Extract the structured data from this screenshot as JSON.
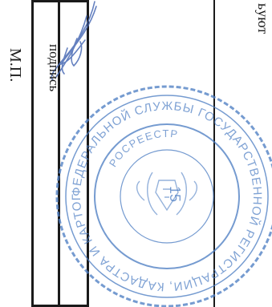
{
  "document": {
    "partial_text": "ьуют",
    "signature_label": "подпись",
    "stamp_place_label": "М.П."
  },
  "seal": {
    "type": "official-round-seal",
    "color": "#4f7fc4",
    "outer_text": "ФЕДЕРАЛЬНОЙ СЛУЖБЫ ГОСУДАРСТВЕННОЙ РЕГИСТРАЦИИ, КАДАСТРА И КАРТОГРАФИИ",
    "inner_text": "РОСРЕЕСТР",
    "number": "15"
  },
  "signature": {
    "color": "#4a6bb5"
  },
  "colors": {
    "ink": "#1a1a1a",
    "seal_blue": "#4f7fc4"
  }
}
